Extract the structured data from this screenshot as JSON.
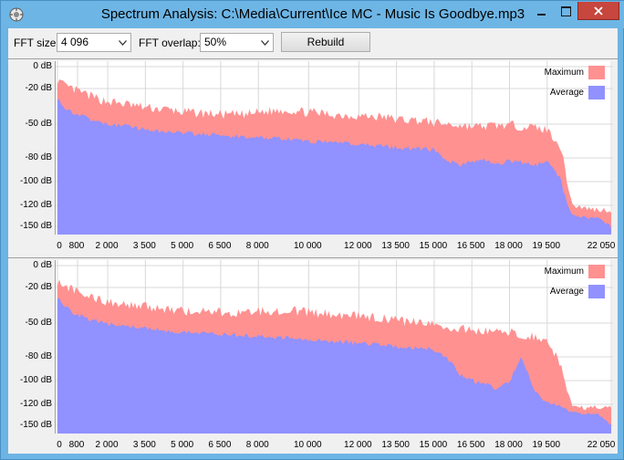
{
  "window": {
    "title": "Spectrum Analysis: C:\\Media\\Current\\Ice MC - Music Is Goodbye.mp3",
    "icon": "settings-gear-icon"
  },
  "toolbar": {
    "fft_size_label": "FFT size:",
    "fft_size_value": "4 096",
    "fft_overlap_label": "FFT overlap:",
    "fft_overlap_value": "50%",
    "rebuild_label": "Rebuild"
  },
  "colors": {
    "maximum": "#ff9191",
    "average": "#9191ff",
    "close_button": "#c7463e",
    "titlebar": "#6db5e5"
  },
  "chart_data": [
    {
      "type": "area",
      "channel": 1,
      "legend": [
        "Maximum",
        "Average"
      ],
      "y_ticks": [
        "0 dB",
        "-20 dB",
        "-50 dB",
        "-80 dB",
        "-100 dB",
        "-120 dB",
        "-150 dB"
      ],
      "y_tick_values": [
        0,
        -20,
        -50,
        -80,
        -100,
        -120,
        -150
      ],
      "x_ticks": [
        "0",
        "800",
        "2 000",
        "3 500",
        "5 000",
        "6 500",
        "8 000",
        "10 000",
        "12 000",
        "13 500",
        "15 000",
        "16 500",
        "18 000",
        "19 500",
        "22 050"
      ],
      "x_tick_values": [
        0,
        800,
        2000,
        3500,
        5000,
        6500,
        8000,
        10000,
        12000,
        13500,
        15000,
        16500,
        18000,
        19500,
        22050
      ],
      "x": [
        0,
        300,
        800,
        1500,
        2000,
        3000,
        3500,
        4500,
        5000,
        6000,
        6500,
        7500,
        8000,
        9000,
        10000,
        11000,
        12000,
        13000,
        13500,
        14500,
        15000,
        15500,
        16000,
        16500,
        17000,
        17500,
        18000,
        18500,
        19000,
        19500,
        20000,
        20500,
        21000,
        21500,
        22050
      ],
      "series": [
        {
          "name": "Maximum",
          "values": [
            -12,
            -18,
            -22,
            -28,
            -31,
            -34,
            -36,
            -38,
            -40,
            -41,
            -42,
            -42,
            -40,
            -38,
            -40,
            -42,
            -43,
            -44,
            -46,
            -47,
            -49,
            -50,
            -51,
            -52,
            -52,
            -51,
            -51,
            -52,
            -53,
            -55,
            -68,
            -120,
            -124,
            -126,
            -127
          ]
        },
        {
          "name": "Average",
          "values": [
            -28,
            -36,
            -42,
            -48,
            -50,
            -53,
            -55,
            -57,
            -58,
            -59,
            -60,
            -61,
            -62,
            -63,
            -65,
            -66,
            -68,
            -70,
            -71,
            -72,
            -73,
            -82,
            -86,
            -84,
            -82,
            -86,
            -82,
            -84,
            -86,
            -84,
            -96,
            -135,
            -137,
            -138,
            -150
          ]
        }
      ],
      "ylim": [
        -155,
        0
      ],
      "xlim": [
        0,
        22050
      ],
      "legend_position": "top-right"
    },
    {
      "type": "area",
      "channel": 2,
      "legend": [
        "Maximum",
        "Average"
      ],
      "y_ticks": [
        "0 dB",
        "-20 dB",
        "-50 dB",
        "-80 dB",
        "-100 dB",
        "-120 dB",
        "-150 dB"
      ],
      "y_tick_values": [
        0,
        -20,
        -50,
        -80,
        -100,
        -120,
        -150
      ],
      "x_ticks": [
        "0",
        "800",
        "2 000",
        "3 500",
        "5 000",
        "6 500",
        "8 000",
        "10 000",
        "12 000",
        "13 500",
        "15 000",
        "16 500",
        "18 000",
        "19 500",
        "22 050"
      ],
      "x_tick_values": [
        0,
        800,
        2000,
        3500,
        5000,
        6500,
        8000,
        10000,
        12000,
        13500,
        15000,
        16500,
        18000,
        19500,
        22050
      ],
      "x": [
        0,
        300,
        800,
        1500,
        2000,
        3000,
        3500,
        4500,
        5000,
        6000,
        6500,
        7500,
        8000,
        9000,
        10000,
        11000,
        12000,
        13000,
        13500,
        14500,
        15000,
        15500,
        16000,
        16500,
        17000,
        17500,
        18000,
        18500,
        19000,
        19500,
        20000,
        20500,
        21000,
        21500,
        22050
      ],
      "series": [
        {
          "name": "Maximum",
          "values": [
            -14,
            -18,
            -24,
            -30,
            -32,
            -35,
            -36,
            -38,
            -40,
            -40,
            -41,
            -41,
            -40,
            -39,
            -41,
            -43,
            -44,
            -46,
            -48,
            -50,
            -52,
            -54,
            -55,
            -56,
            -57,
            -58,
            -58,
            -60,
            -62,
            -66,
            -85,
            -122,
            -124,
            -125,
            -126
          ]
        },
        {
          "name": "Average",
          "values": [
            -28,
            -37,
            -43,
            -48,
            -51,
            -53,
            -55,
            -57,
            -58,
            -59,
            -60,
            -61,
            -62,
            -63,
            -65,
            -66,
            -68,
            -70,
            -71,
            -72,
            -74,
            -80,
            -95,
            -100,
            -102,
            -108,
            -100,
            -80,
            -110,
            -118,
            -122,
            -132,
            -133,
            -133,
            -150
          ]
        }
      ],
      "ylim": [
        -155,
        0
      ],
      "xlim": [
        0,
        22050
      ],
      "legend_position": "top-right"
    }
  ]
}
